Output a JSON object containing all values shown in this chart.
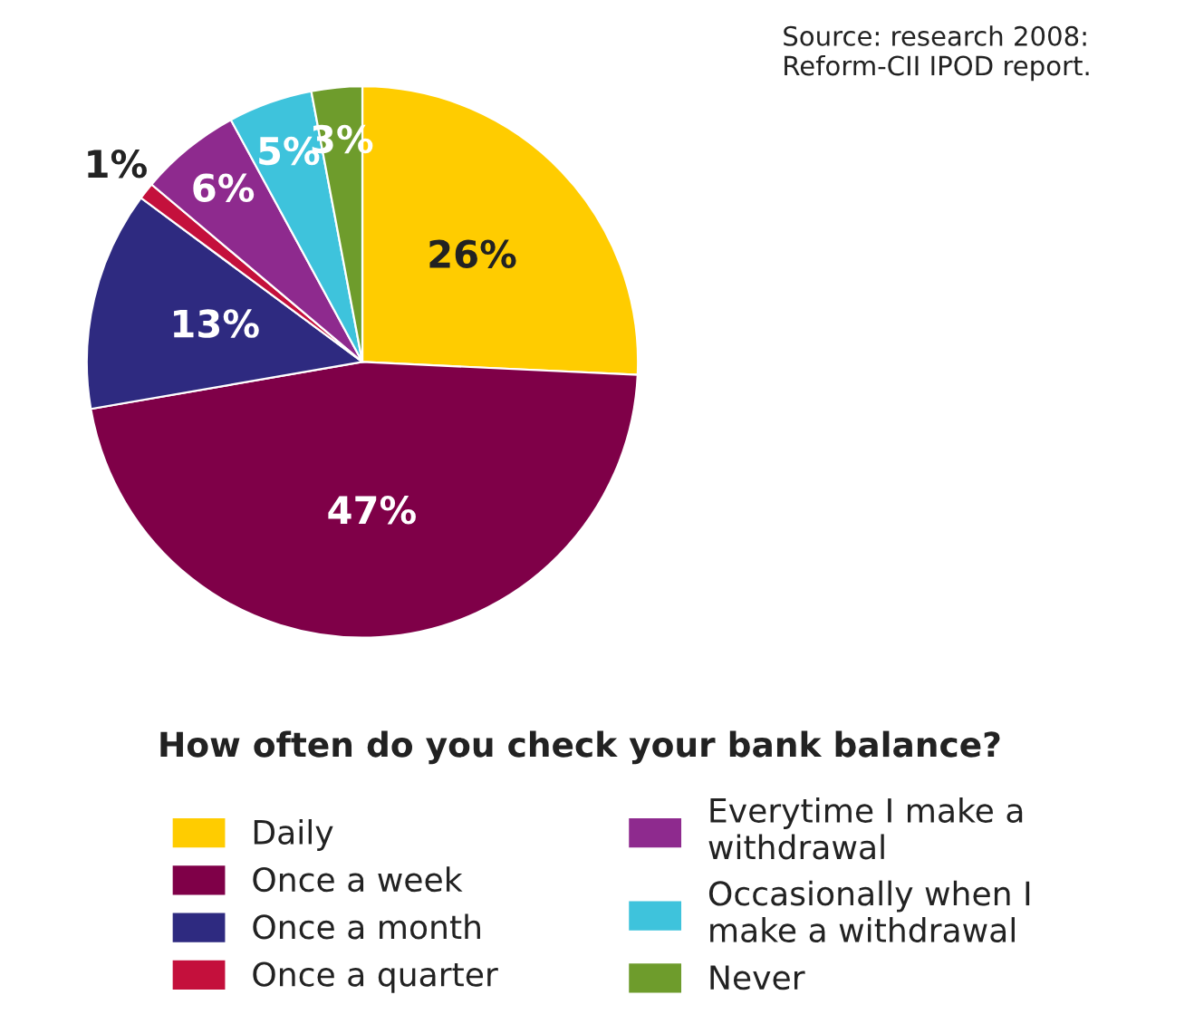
{
  "chart_data": {
    "type": "pie",
    "title": "How often do you check your bank balance?",
    "categories": [
      "Daily",
      "Once a week",
      "Once a month",
      "Once a quarter",
      "Everytime I make a withdrawal",
      "Occasionally when I make a withdrawal",
      "Never"
    ],
    "values": [
      26,
      47,
      13,
      1,
      6,
      5,
      3
    ],
    "colors": [
      "#ffcc00",
      "#7f0048",
      "#2e2a80",
      "#c4103c",
      "#8e2a8e",
      "#3ec3dc",
      "#6e9c2c"
    ],
    "value_labels": [
      "26%",
      "47%",
      "13%",
      "1%",
      "6%",
      "5%",
      "3%"
    ],
    "legend": "bottom",
    "annotations": [
      "Source: research 2008: Reform-CII IPOD report."
    ]
  }
}
